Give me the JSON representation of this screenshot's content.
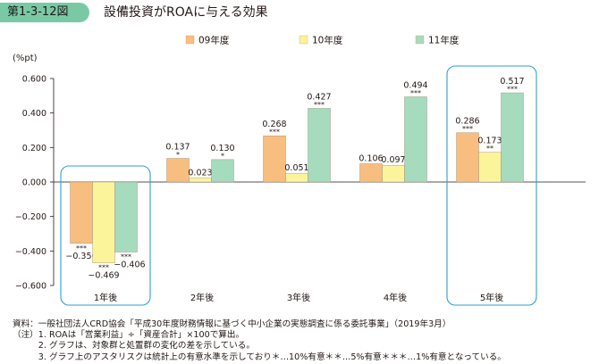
{
  "figure_label": "第1-3-12図",
  "figure_title": "設備投資がROAに与える効果",
  "notes": [
    "資料：一般社団法人CRD協会「平成30年度財務情報に基づく中小企業の実態調査に係る委託事業」（2019年3月）",
    "（注）1. ROAは「営業利益」÷「資産合計」×100で算出。",
    "　　　2. グラフは、対象群と処置群の変化の差を示している。",
    "　　　3. グラフ上のアスタリスクは統計上の有意水準を示しており＊…10%有意＊＊…5%有意＊＊＊…1%有意となっている。"
  ],
  "colors": {
    "series": [
      "#f8be7f",
      "#fbf49b",
      "#a6dbbe"
    ],
    "highlight_box": "#2f9fd6",
    "axis": "#231815",
    "label_bg": "#7ac9a5"
  },
  "chart_data": {
    "type": "bar",
    "ylabel": "(%pt)",
    "ylim": [
      -0.6,
      0.6
    ],
    "yticks": [
      "0.600",
      "0.400",
      "0.200",
      "0.000",
      "−0.200",
      "−0.400",
      "−0.600"
    ],
    "yticks_values": [
      0.6,
      0.4,
      0.2,
      0.0,
      -0.2,
      -0.4,
      -0.6
    ],
    "categories": [
      "1年後",
      "2年後",
      "3年後",
      "4年後",
      "5年後"
    ],
    "highlighted_categories": [
      "1年後",
      "5年後"
    ],
    "legend_position": "top",
    "series": [
      {
        "name": "09年度",
        "values": [
          -0.356,
          0.137,
          0.268,
          0.106,
          0.286
        ],
        "labels": [
          "−0.356",
          "0.137",
          "0.268",
          "0.106",
          "0.286"
        ],
        "significance": [
          "***",
          "*",
          "***",
          "",
          "***"
        ]
      },
      {
        "name": "10年度",
        "values": [
          -0.469,
          0.023,
          0.051,
          0.097,
          0.173
        ],
        "labels": [
          "−0.469",
          "0.023",
          "0.051",
          "0.097",
          "0.173"
        ],
        "significance": [
          "***",
          "",
          "",
          "",
          "**"
        ]
      },
      {
        "name": "11年度",
        "values": [
          -0.406,
          0.13,
          0.427,
          0.494,
          0.517
        ],
        "labels": [
          "−0.406",
          "0.130",
          "0.427",
          "0.494",
          "0.517"
        ],
        "significance": [
          "***",
          "*",
          "***",
          "***",
          "***"
        ]
      }
    ]
  }
}
